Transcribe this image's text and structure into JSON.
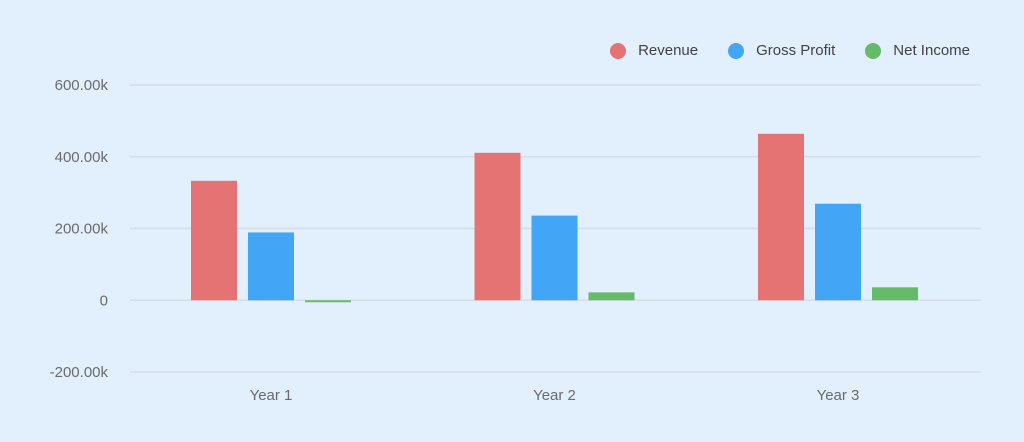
{
  "chart_data": {
    "type": "bar",
    "title": "",
    "xlabel": "",
    "ylabel": "",
    "categories": [
      "Year 1",
      "Year 2",
      "Year 3"
    ],
    "series": [
      {
        "name": "Revenue",
        "color": "#e57373",
        "values": [
          333000,
          411000,
          464000
        ]
      },
      {
        "name": "Gross Profit",
        "color": "#42a5f5",
        "values": [
          189000,
          236000,
          269000
        ]
      },
      {
        "name": "Net Income",
        "color": "#66bb6a",
        "values": [
          -5000,
          22000,
          36000
        ]
      }
    ],
    "ylim": [
      -200000,
      600000
    ],
    "yticks": [
      -200000,
      0,
      200000,
      400000,
      600000
    ],
    "ytick_labels": [
      "-200.00k",
      "0",
      "200.00k",
      "400.00k",
      "600.00k"
    ],
    "grid": true,
    "legend_position": "top-right"
  },
  "legend": [
    {
      "label": "Revenue",
      "color": "#e57373"
    },
    {
      "label": "Gross Profit",
      "color": "#42a5f5"
    },
    {
      "label": "Net Income",
      "color": "#66bb6a"
    }
  ]
}
